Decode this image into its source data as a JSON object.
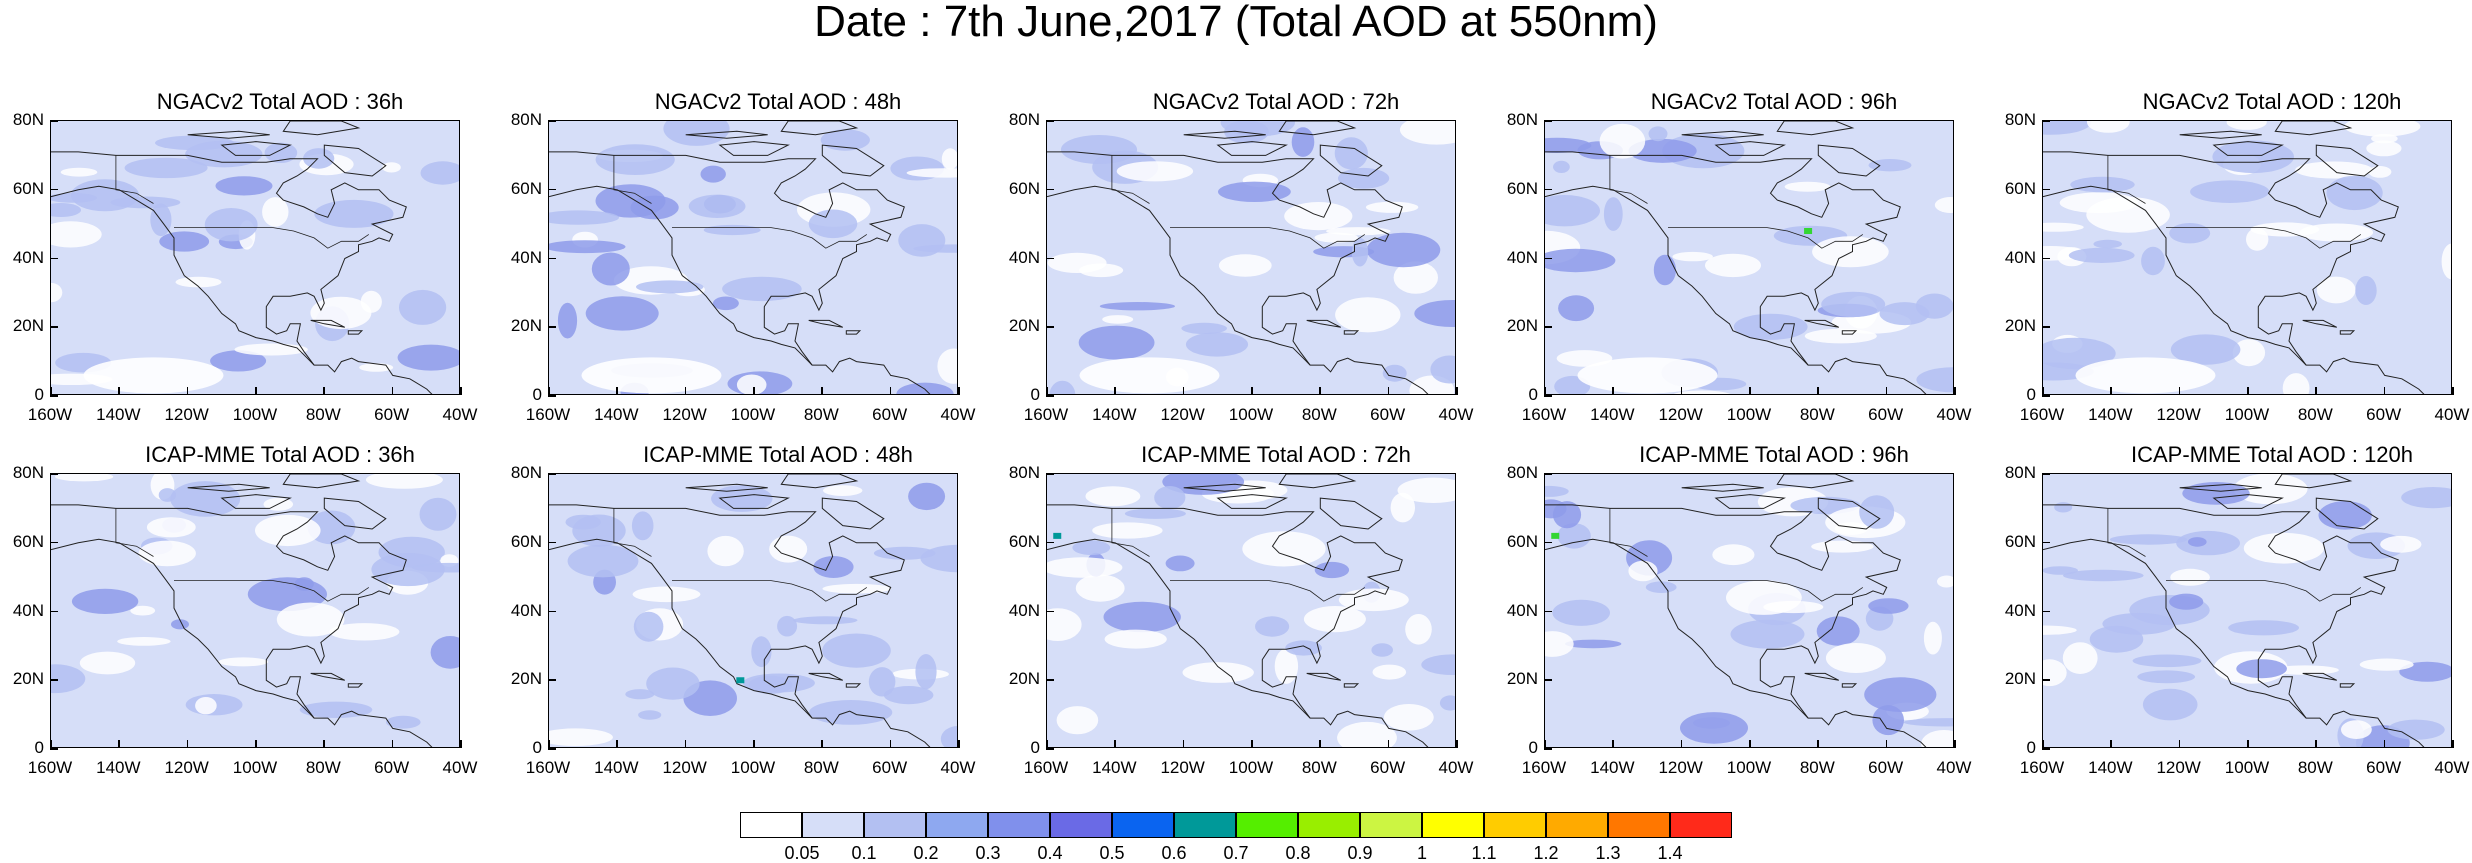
{
  "title": "Date : 7th June,2017 (Total AOD at 550nm)",
  "colors": {
    "background_level": "#d6def8",
    "low_level": "#ffffff",
    "mid_level": "#b3c0f2",
    "high_level": "#8e9bea",
    "coastline": "#222222"
  },
  "axes": {
    "y_ticks": [
      "80N",
      "60N",
      "40N",
      "20N",
      "0"
    ],
    "x_ticks": [
      "160W",
      "140W",
      "120W",
      "100W",
      "80W",
      "60W",
      "40W"
    ],
    "lat_range": [
      0,
      80
    ],
    "lon_range": [
      -160,
      -40
    ]
  },
  "panels": [
    {
      "title": "NGACv2 Total AOD : 36h",
      "row": 0,
      "col": 0,
      "hotspots": []
    },
    {
      "title": "NGACv2 Total AOD : 48h",
      "row": 0,
      "col": 1,
      "hotspots": []
    },
    {
      "title": "NGACv2 Total AOD : 72h",
      "row": 0,
      "col": 2,
      "hotspots": []
    },
    {
      "title": "NGACv2 Total AOD : 96h",
      "row": 0,
      "col": 3,
      "hotspots": [
        {
          "lon": -83,
          "lat": 48,
          "color": "#33d633"
        }
      ]
    },
    {
      "title": "NGACv2 Total AOD : 120h",
      "row": 0,
      "col": 4,
      "hotspots": []
    },
    {
      "title": "ICAP-MME Total AOD : 36h",
      "row": 1,
      "col": 0,
      "hotspots": []
    },
    {
      "title": "ICAP-MME Total AOD : 48h",
      "row": 1,
      "col": 1,
      "hotspots": [
        {
          "lon": -104,
          "lat": 20,
          "color": "#009999"
        }
      ]
    },
    {
      "title": "ICAP-MME Total AOD : 72h",
      "row": 1,
      "col": 2,
      "hotspots": [
        {
          "lon": -157,
          "lat": 62,
          "color": "#009999"
        }
      ]
    },
    {
      "title": "ICAP-MME Total AOD : 96h",
      "row": 1,
      "col": 3,
      "hotspots": [
        {
          "lon": -157,
          "lat": 62,
          "color": "#33d633"
        }
      ]
    },
    {
      "title": "ICAP-MME Total AOD : 120h",
      "row": 1,
      "col": 4,
      "hotspots": []
    }
  ],
  "colorbar": {
    "colors": [
      "#ffffff",
      "#d6def8",
      "#b3c0f2",
      "#8ea8f0",
      "#8090ec",
      "#6a6ae6",
      "#0a64f0",
      "#009999",
      "#55ee00",
      "#99ee00",
      "#ccf542",
      "#ffff00",
      "#ffcc00",
      "#ffaa00",
      "#ff7700",
      "#ff2a1a"
    ],
    "labels": [
      "0.05",
      "0.1",
      "0.2",
      "0.3",
      "0.4",
      "0.5",
      "0.6",
      "0.7",
      "0.8",
      "0.9",
      "1",
      "1.1",
      "1.2",
      "1.3",
      "1.4"
    ]
  }
}
